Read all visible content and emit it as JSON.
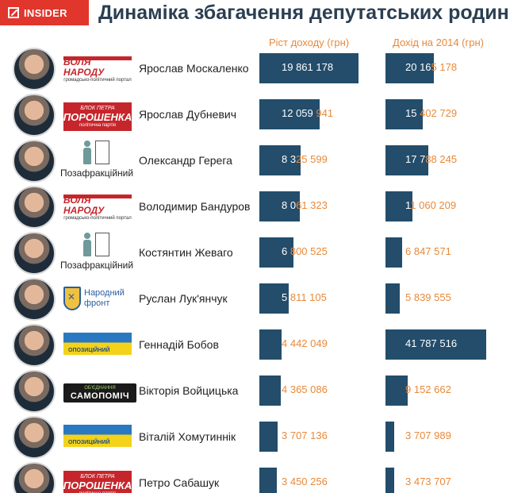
{
  "header": {
    "logo": "INSIDER",
    "title": "Динаміка збагачення депутатських родин"
  },
  "colors": {
    "bar": "#234d6b",
    "accent": "#e8893a",
    "brand": "#e0362c"
  },
  "chart_data": {
    "type": "bar",
    "title": "Динаміка збагачення депутатських родин",
    "series": [
      {
        "name": "Ріст доходу (грн)",
        "values": [
          19861178,
          12059941,
          8325599,
          8061323,
          6800525,
          5811105,
          4442049,
          4365086,
          3707136,
          3450256
        ]
      },
      {
        "name": "Дохід на 2014 (грн)",
        "values": [
          20165178,
          15402729,
          17788245,
          11060209,
          6847571,
          5839555,
          41787516,
          9152662,
          3707989,
          3473707
        ]
      }
    ],
    "rows": [
      {
        "name": "Ярослав Москаленко",
        "party": "volya",
        "growth": "19 861 178",
        "income": "20 165 178"
      },
      {
        "name": "Ярослав Дубневич",
        "party": "bpp",
        "growth": "12 059 941",
        "income": "15 402 729"
      },
      {
        "name": "Олександр Герега",
        "party": "none",
        "growth": "8 325 599",
        "income": "17 788 245"
      },
      {
        "name": "Володимир Бандуров",
        "party": "volya",
        "growth": "8 061 323",
        "income": "11 060 209"
      },
      {
        "name": "Костянтин Жеваго",
        "party": "none",
        "growth": "6 800 525",
        "income": "6 847 571"
      },
      {
        "name": "Руслан Лук'янчук",
        "party": "nf",
        "growth": "5 811 105",
        "income": "5 839 555"
      },
      {
        "name": "Геннадій Бобов",
        "party": "opo",
        "growth": "4 442 049",
        "income": "41 787 516"
      },
      {
        "name": "Вікторія Войцицька",
        "party": "samo",
        "growth": "4 365 086",
        "income": "9 152 662"
      },
      {
        "name": "Віталій Хомутиннік",
        "party": "opo",
        "growth": "3 707 136",
        "income": "3 707 989"
      },
      {
        "name": "Петро Сабашук",
        "party": "bpp",
        "growth": "3 450 256",
        "income": "3 473 707"
      }
    ]
  },
  "parties": {
    "volya": {
      "line1": "ВОЛЯ НАРОДУ",
      "line2": "громадсько-політичний портал"
    },
    "bpp": {
      "line1": "БЛОК ПЕТРА",
      "line2": "ПОРОШЕНКА",
      "line3": "політична партія"
    },
    "none": {
      "label": "Позафракційний"
    },
    "nf": {
      "line1": "Народний",
      "line2": "фронт"
    },
    "opo": {
      "label": "ОПОЗИЦІЙНИЙ"
    },
    "samo": {
      "line1": "ОБ'ЄДНАННЯ",
      "line2": "САМОПОМІЧ"
    }
  }
}
